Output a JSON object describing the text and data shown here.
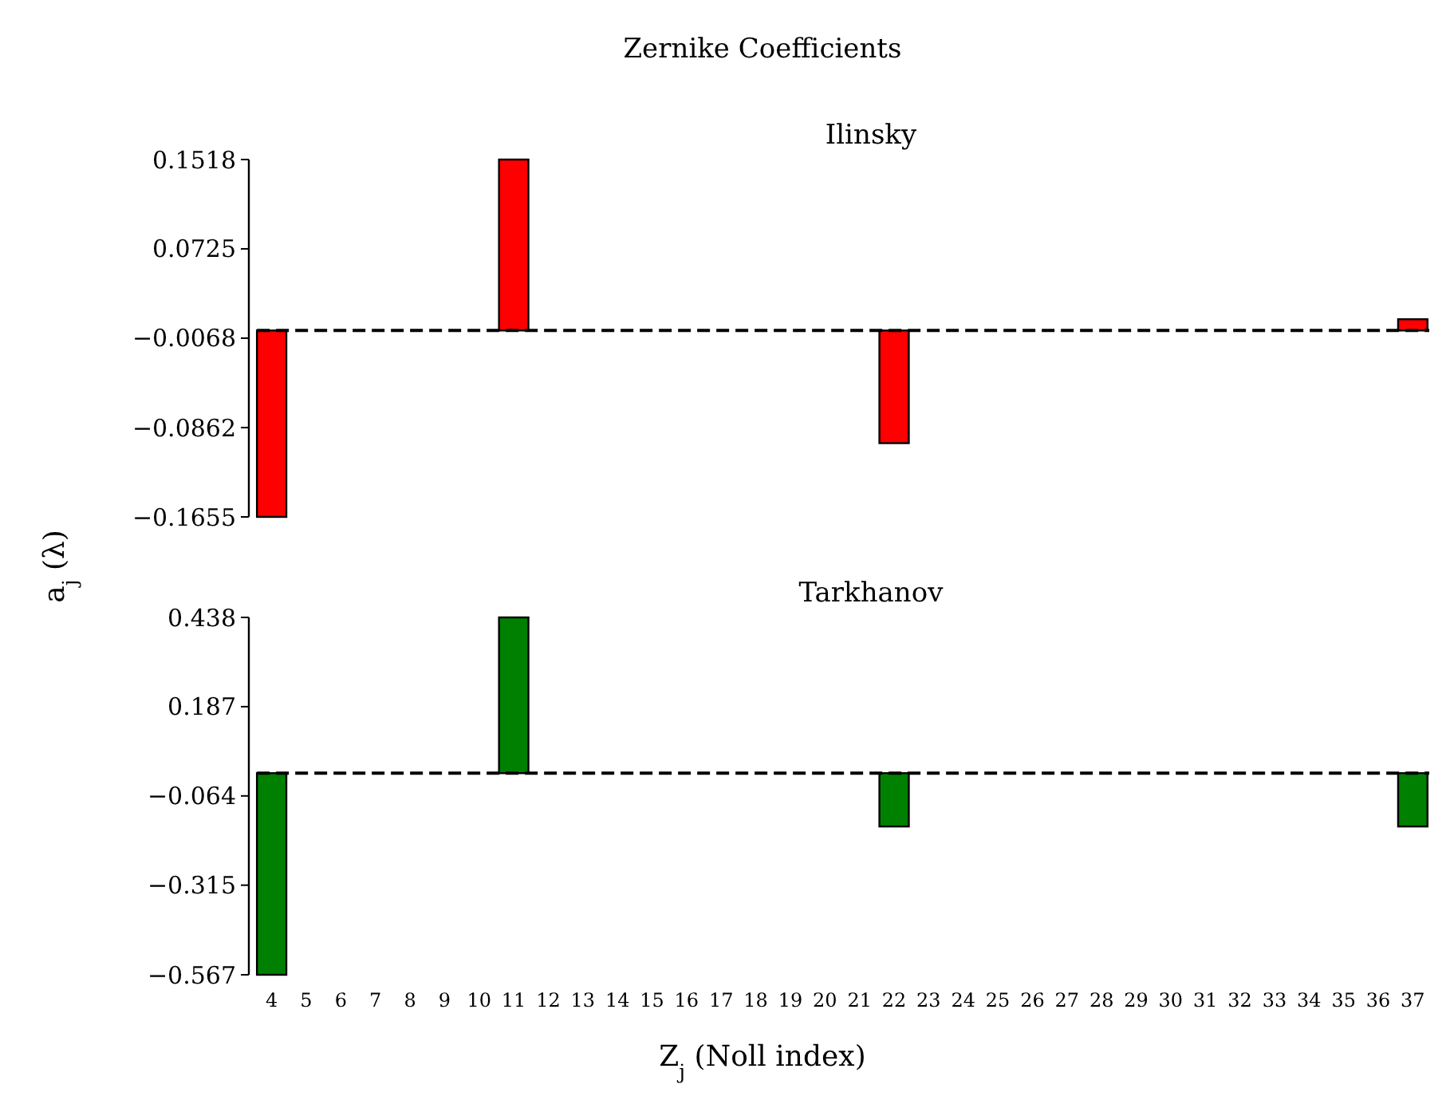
{
  "chart_data": [
    {
      "type": "bar",
      "title": "Zernike Coefficients",
      "subtitle": "Ilinsky",
      "ylabel": "a$_{j}$ (λ)",
      "categories": [
        "4",
        "5",
        "6",
        "7",
        "8",
        "9",
        "10",
        "11",
        "12",
        "13",
        "14",
        "15",
        "16",
        "17",
        "18",
        "19",
        "20",
        "21",
        "22",
        "23",
        "24",
        "25",
        "26",
        "27",
        "28",
        "29",
        "30",
        "31",
        "32",
        "33",
        "34",
        "35",
        "36",
        "37"
      ],
      "values": [
        -0.1655,
        0,
        0,
        0,
        0,
        0,
        0,
        0.1518,
        0,
        0,
        0,
        0,
        0,
        0,
        0,
        0,
        0,
        0,
        -0.1,
        0,
        0,
        0,
        0,
        0,
        0,
        0,
        0,
        0,
        0,
        0,
        0,
        0,
        0,
        0.01
      ],
      "color": "#ff0000",
      "ylim": [
        -0.1655,
        0.1518
      ],
      "yticks": [
        0.1518,
        0.0725,
        -0.0068,
        -0.0862,
        -0.1655
      ],
      "tick_labels": "y",
      "grid": false,
      "ref_lines": [
        {
          "axis": "y",
          "value": 0,
          "color": "#000000",
          "line_style": "dashed"
        }
      ]
    },
    {
      "type": "bar",
      "subtitle": "Tarkhanov",
      "xlabel": "Z$_{j}$ (Noll index)",
      "categories": [
        "4",
        "5",
        "6",
        "7",
        "8",
        "9",
        "10",
        "11",
        "12",
        "13",
        "14",
        "15",
        "16",
        "17",
        "18",
        "19",
        "20",
        "21",
        "22",
        "23",
        "24",
        "25",
        "26",
        "27",
        "28",
        "29",
        "30",
        "31",
        "32",
        "33",
        "34",
        "35",
        "36",
        "37"
      ],
      "values": [
        -0.567,
        0,
        0,
        0,
        0,
        0,
        0,
        0.438,
        0,
        0,
        0,
        0,
        0,
        0,
        0,
        0,
        0,
        0,
        -0.15,
        0,
        0,
        0,
        0,
        0,
        0,
        0,
        0,
        0,
        0,
        0,
        0,
        0,
        0,
        -0.15
      ],
      "color": "#008000",
      "ylim": [
        -0.567,
        0.438
      ],
      "yticks": [
        0.438,
        0.187,
        -0.064,
        -0.315,
        -0.567
      ],
      "grid": false,
      "ref_lines": [
        {
          "axis": "y",
          "value": 0,
          "color": "#000000",
          "line_style": "dashed"
        }
      ]
    }
  ]
}
